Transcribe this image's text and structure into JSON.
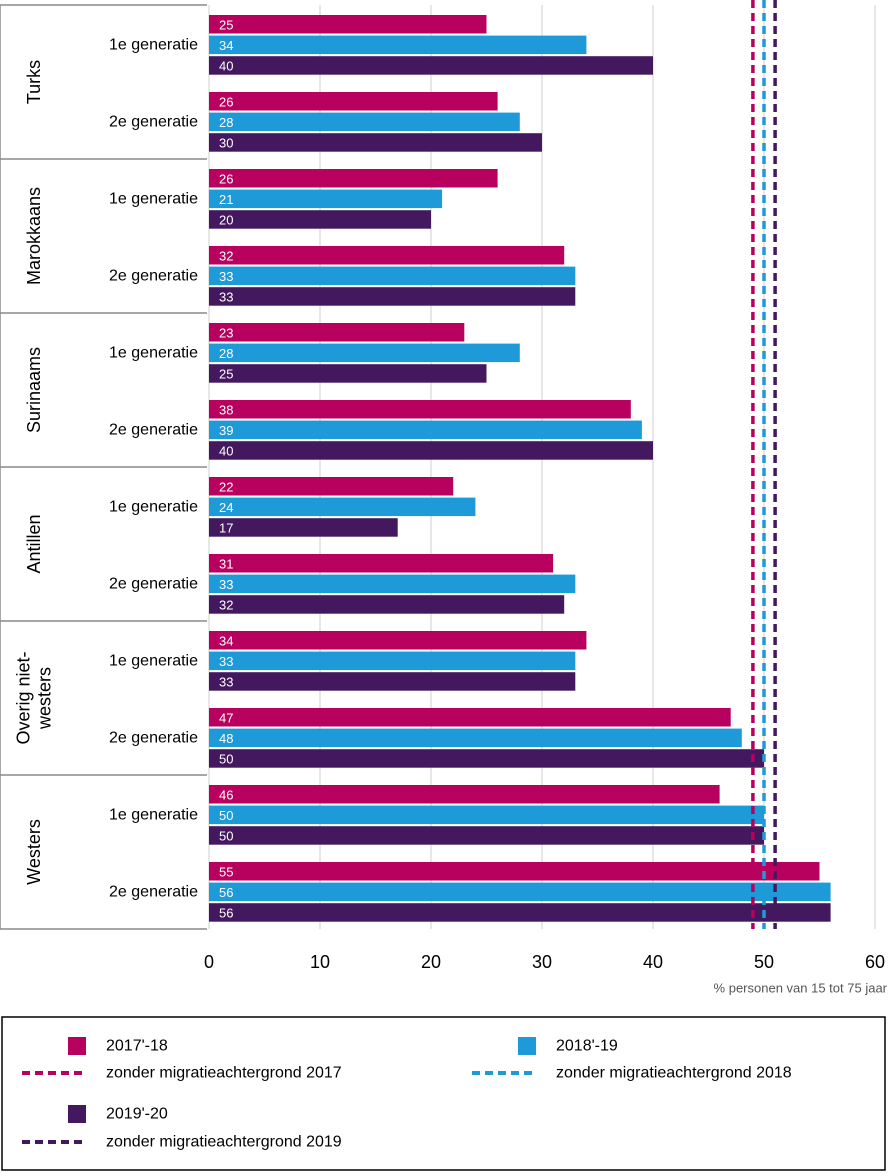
{
  "chart_data": {
    "type": "bar",
    "orientation": "horizontal",
    "groups": [
      {
        "name": "Turks",
        "rows": [
          {
            "label": "1e generatie",
            "values": [
              25,
              34,
              40
            ]
          },
          {
            "label": "2e generatie",
            "values": [
              26,
              28,
              30
            ]
          }
        ]
      },
      {
        "name": "Marokkaans",
        "rows": [
          {
            "label": "1e generatie",
            "values": [
              26,
              21,
              20
            ]
          },
          {
            "label": "2e generatie",
            "values": [
              32,
              33,
              33
            ]
          }
        ]
      },
      {
        "name": "Surinaams",
        "rows": [
          {
            "label": "1e generatie",
            "values": [
              23,
              28,
              25
            ]
          },
          {
            "label": "2e generatie",
            "values": [
              38,
              39,
              40
            ]
          }
        ]
      },
      {
        "name": "Antillen",
        "rows": [
          {
            "label": "1e generatie",
            "values": [
              22,
              24,
              17
            ]
          },
          {
            "label": "2e generatie",
            "values": [
              31,
              33,
              32
            ]
          }
        ]
      },
      {
        "name": "Overig niet-westers",
        "name_lines": [
          "Overig niet-",
          "westers"
        ],
        "rows": [
          {
            "label": "1e generatie",
            "values": [
              34,
              33,
              33
            ]
          },
          {
            "label": "2e generatie",
            "values": [
              47,
              48,
              50
            ]
          }
        ]
      },
      {
        "name": "Westers",
        "rows": [
          {
            "label": "1e generatie",
            "values": [
              46,
              50,
              50
            ]
          },
          {
            "label": "2e generatie",
            "values": [
              55,
              56,
              56
            ]
          }
        ]
      }
    ],
    "series": [
      {
        "name": "2017'-18",
        "color": "#b8005e"
      },
      {
        "name": "2018'-19",
        "color": "#1e9ad8"
      },
      {
        "name": "2019'-20",
        "color": "#43185f"
      }
    ],
    "reference_lines": [
      {
        "name": "zonder migratieachtergrond 2017",
        "value": 49,
        "color": "#b8005e"
      },
      {
        "name": "zonder migratieachtergrond 2018",
        "value": 50,
        "color": "#1e9ad8"
      },
      {
        "name": "zonder migratieachtergrond 2019",
        "value": 51,
        "color": "#43185f"
      }
    ],
    "xlim": [
      0,
      60
    ],
    "xticks": [
      0,
      10,
      20,
      30,
      40,
      50,
      60
    ],
    "xlabel": "% personen van 15 tot 75 jaar",
    "grid": "vertical",
    "legend_position": "bottom"
  }
}
